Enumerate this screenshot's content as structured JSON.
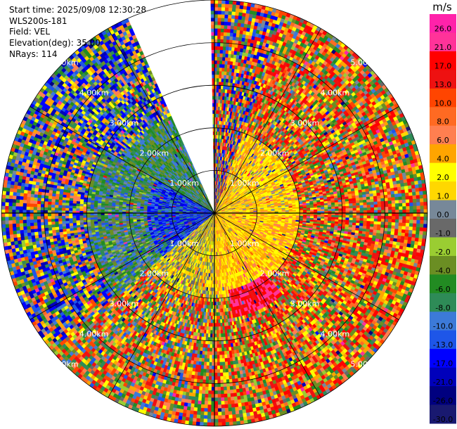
{
  "info": {
    "start_time": "Start time: 2025/09/08 12:30:28",
    "instrument": "WLS200s-181",
    "field": "Field: VEL",
    "elevation": "Elevation(deg): 35.00",
    "nrays": "NRays: 114"
  },
  "chart_data": {
    "type": "heatmap",
    "projection": "polar-ppi",
    "field": "VEL",
    "units": "m/s",
    "elevation_deg": 35.0,
    "nrays": 114,
    "max_range_km": 5.0,
    "range_rings_km": [
      1.0,
      2.0,
      3.0,
      4.0,
      5.0
    ],
    "ring_labels": [
      "1.00km",
      "2.00km",
      "3.00km",
      "4.00km",
      "5.00km"
    ],
    "missing_sector_deg": [
      336,
      359
    ],
    "colorbar": {
      "unit_label": "m/s",
      "tick_labels": [
        "26.0",
        "21.0",
        "17.0",
        "13.0",
        "10.0",
        "8.0",
        "6.0",
        "4.0",
        "2.0",
        "1.0",
        "0.0",
        "-1.0",
        "-2.0",
        "-4.0",
        "-6.0",
        "-8.0",
        "-10.0",
        "-13.0",
        "-17.0",
        "-21.0",
        "-26.0",
        "-30.0"
      ],
      "bands": [
        {
          "from": 26,
          "to": 30,
          "color": "#ff22aa"
        },
        {
          "from": 21,
          "to": 26,
          "color": "#ff3399"
        },
        {
          "from": 17,
          "to": 21,
          "color": "#ff0000"
        },
        {
          "from": 13,
          "to": 17,
          "color": "#ee1111"
        },
        {
          "from": 10,
          "to": 13,
          "color": "#ff4500"
        },
        {
          "from": 8,
          "to": 10,
          "color": "#ff6a22"
        },
        {
          "from": 6,
          "to": 8,
          "color": "#ff7f50"
        },
        {
          "from": 4,
          "to": 6,
          "color": "#ffa500"
        },
        {
          "from": 2,
          "to": 4,
          "color": "#ffff00"
        },
        {
          "from": 1,
          "to": 2,
          "color": "#ffd700"
        },
        {
          "from": 0,
          "to": 1,
          "color": "#778899"
        },
        {
          "from": -1,
          "to": 0,
          "color": "#696969"
        },
        {
          "from": -2,
          "to": -1,
          "color": "#9acd32"
        },
        {
          "from": -4,
          "to": -2,
          "color": "#6b8e23"
        },
        {
          "from": -6,
          "to": -4,
          "color": "#228b22"
        },
        {
          "from": -8,
          "to": -6,
          "color": "#2e8b57"
        },
        {
          "from": -10,
          "to": -8,
          "color": "#3c7ad8"
        },
        {
          "from": -13,
          "to": -10,
          "color": "#1e56e8"
        },
        {
          "from": -17,
          "to": -13,
          "color": "#0000ff"
        },
        {
          "from": -21,
          "to": -17,
          "color": "#0000bb"
        },
        {
          "from": -26,
          "to": -21,
          "color": "#000080"
        },
        {
          "from": -30,
          "to": -26,
          "color": "#191970"
        }
      ]
    },
    "regions": [
      {
        "az_from": 0,
        "az_to": 20,
        "r_from": 0.0,
        "r_to": 5.0,
        "mean_vel": 0,
        "spread": 18
      },
      {
        "az_from": 20,
        "az_to": 90,
        "r_from": 0.0,
        "r_to": 2.0,
        "mean_vel": 3.5,
        "spread": 3
      },
      {
        "az_from": 20,
        "az_to": 90,
        "r_from": 2.0,
        "r_to": 5.0,
        "mean_vel": 5,
        "spread": 14
      },
      {
        "az_from": 90,
        "az_to": 180,
        "r_from": 0.0,
        "r_to": 2.0,
        "mean_vel": 4,
        "spread": 3
      },
      {
        "az_from": 90,
        "az_to": 180,
        "r_from": 2.0,
        "r_to": 5.0,
        "mean_vel": 6,
        "spread": 14
      },
      {
        "az_from": 140,
        "az_to": 170,
        "r_from": 1.8,
        "r_to": 2.5,
        "mean_vel": 20,
        "spread": 6
      },
      {
        "az_from": 180,
        "az_to": 230,
        "r_from": 0.0,
        "r_to": 2.0,
        "mean_vel": 1.5,
        "spread": 4
      },
      {
        "az_from": 180,
        "az_to": 230,
        "r_from": 2.0,
        "r_to": 5.0,
        "mean_vel": 3,
        "spread": 14
      },
      {
        "az_from": 230,
        "az_to": 300,
        "r_from": 0.0,
        "r_to": 1.6,
        "mean_vel": -12,
        "spread": 6
      },
      {
        "az_from": 230,
        "az_to": 300,
        "r_from": 1.6,
        "r_to": 3.0,
        "mean_vel": -5,
        "spread": 6
      },
      {
        "az_from": 230,
        "az_to": 300,
        "r_from": 3.0,
        "r_to": 5.0,
        "mean_vel": -4,
        "spread": 16
      },
      {
        "az_from": 300,
        "az_to": 336,
        "r_from": 0.0,
        "r_to": 2.5,
        "mean_vel": -6,
        "spread": 4
      },
      {
        "az_from": 300,
        "az_to": 336,
        "r_from": 2.5,
        "r_to": 5.0,
        "mean_vel": -6,
        "spread": 14
      }
    ]
  }
}
